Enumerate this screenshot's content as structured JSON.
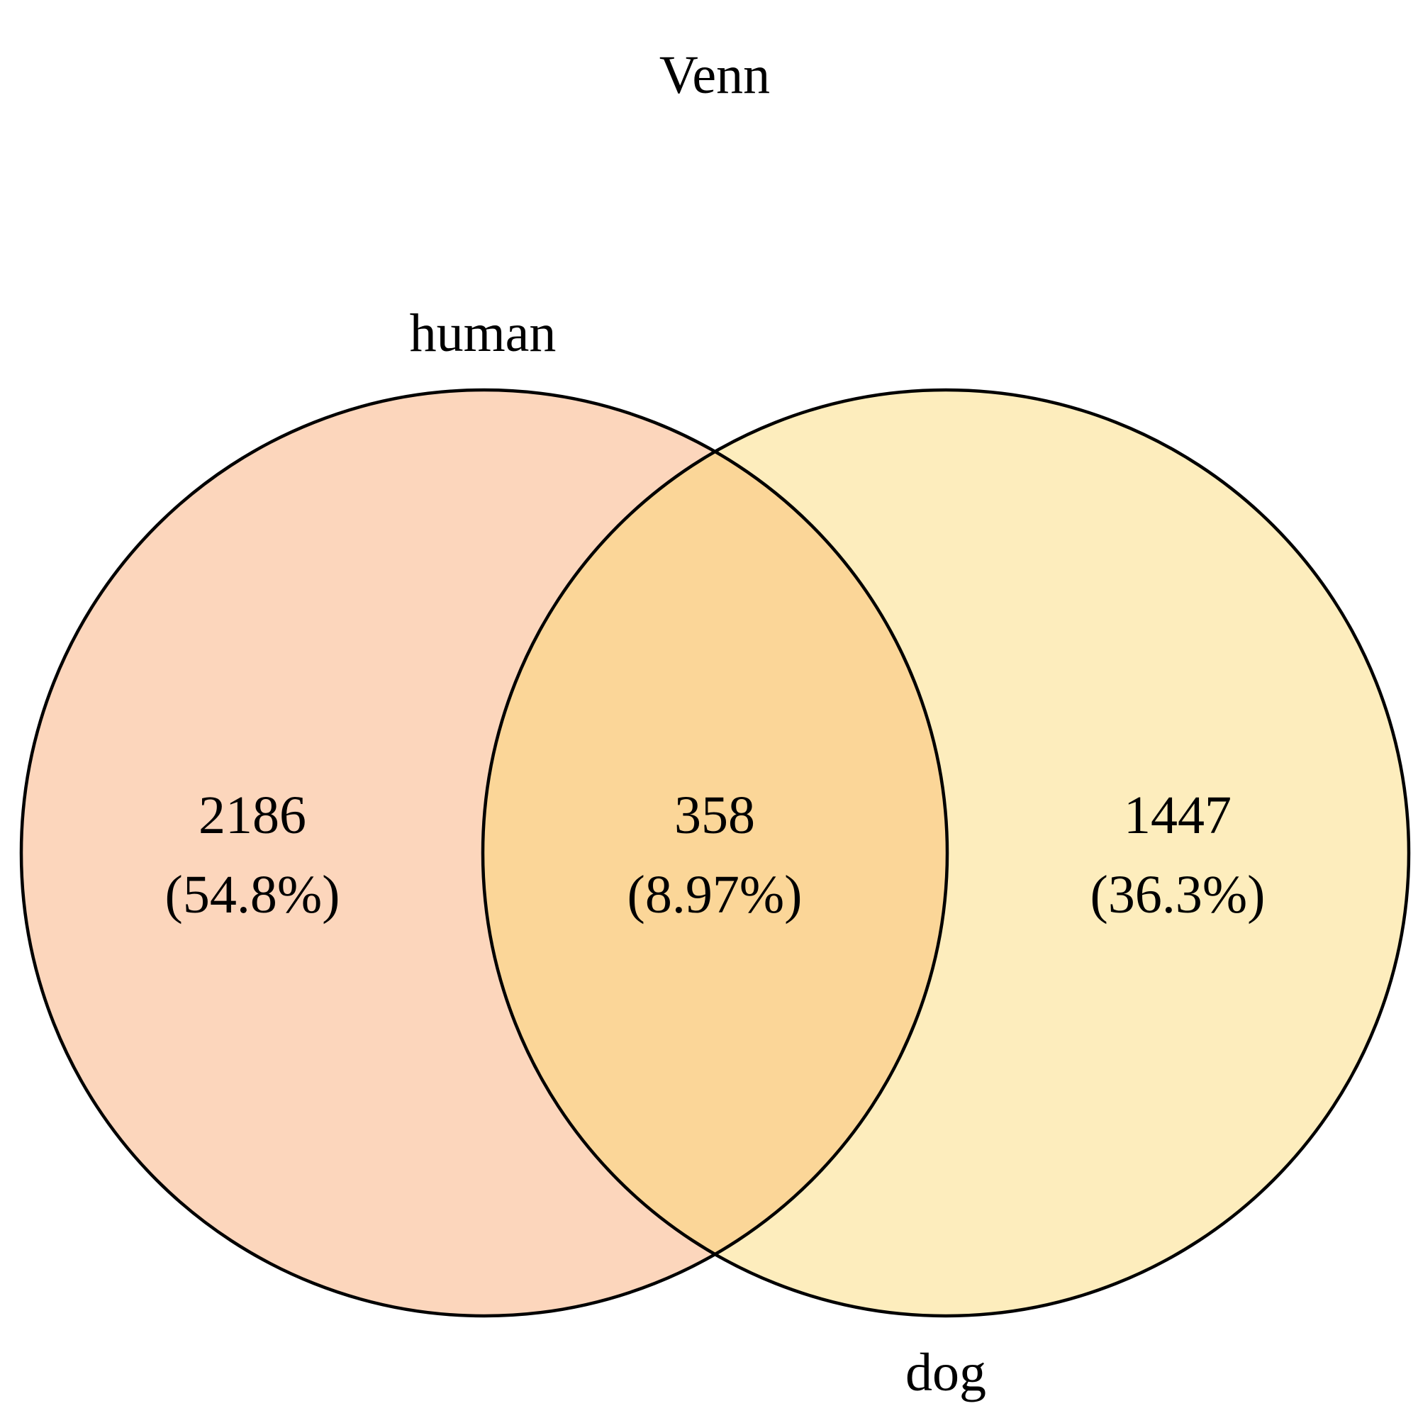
{
  "title": "Venn",
  "sets": [
    {
      "name": "human",
      "color": "#f8a56a",
      "opacity": 0.45
    },
    {
      "name": "dog",
      "color": "#fbd66c",
      "opacity": 0.45
    }
  ],
  "regions": {
    "human_only": {
      "count": "2186",
      "percent": "(54.8%)"
    },
    "intersection": {
      "count": "358",
      "percent": "(8.97%)"
    },
    "dog_only": {
      "count": "1447",
      "percent": "(36.3%)"
    }
  }
}
